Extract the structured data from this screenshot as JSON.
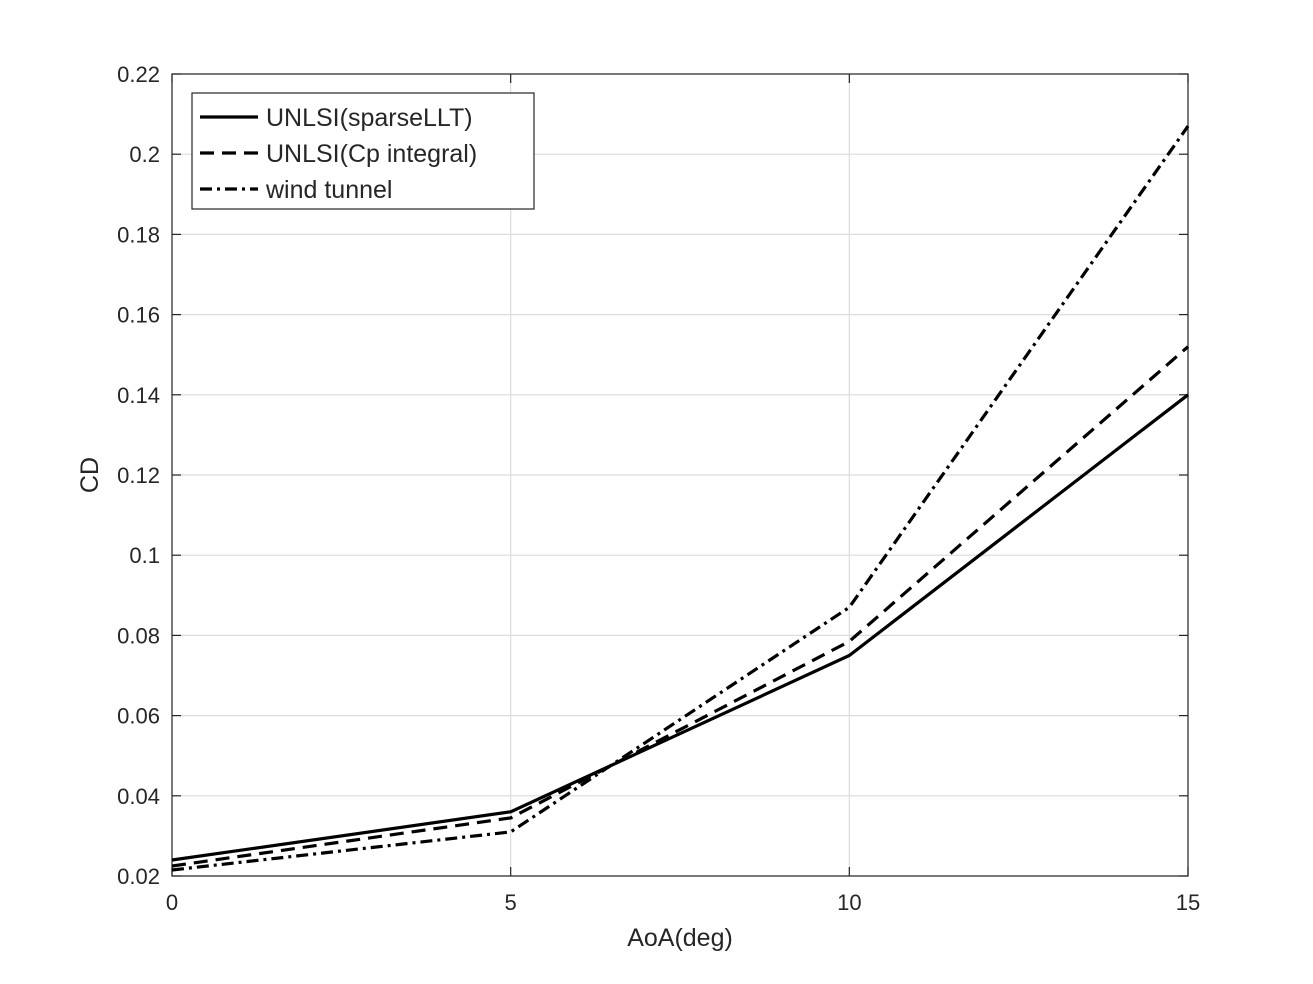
{
  "chart_data": {
    "type": "line",
    "title": "",
    "xlabel": "AoA(deg)",
    "ylabel": "CD",
    "xlim": [
      0,
      15
    ],
    "ylim": [
      0.02,
      0.22
    ],
    "x_ticks": [
      0,
      5,
      10,
      15
    ],
    "x_tick_labels": [
      "0",
      "5",
      "10",
      "15"
    ],
    "y_ticks": [
      0.02,
      0.04,
      0.06,
      0.08,
      0.1,
      0.12,
      0.14,
      0.16,
      0.18,
      0.2,
      0.22
    ],
    "y_tick_labels": [
      "0.02",
      "0.04",
      "0.06",
      "0.08",
      "0.1",
      "0.12",
      "0.14",
      "0.16",
      "0.18",
      "0.2",
      "0.22"
    ],
    "grid": true,
    "legend_position": "top-left",
    "x": [
      0,
      5,
      10,
      15
    ],
    "series": [
      {
        "name": "UNLSI(sparseLLT)",
        "style": "solid",
        "color": "#000000",
        "values": [
          0.024,
          0.036,
          0.075,
          0.14
        ]
      },
      {
        "name": "UNLSI(Cp integral)",
        "style": "dashed",
        "color": "#000000",
        "values": [
          0.0225,
          0.0345,
          0.0785,
          0.152
        ]
      },
      {
        "name": "wind tunnel",
        "style": "dashdot",
        "color": "#000000",
        "values": [
          0.0215,
          0.031,
          0.087,
          0.207
        ]
      }
    ]
  }
}
